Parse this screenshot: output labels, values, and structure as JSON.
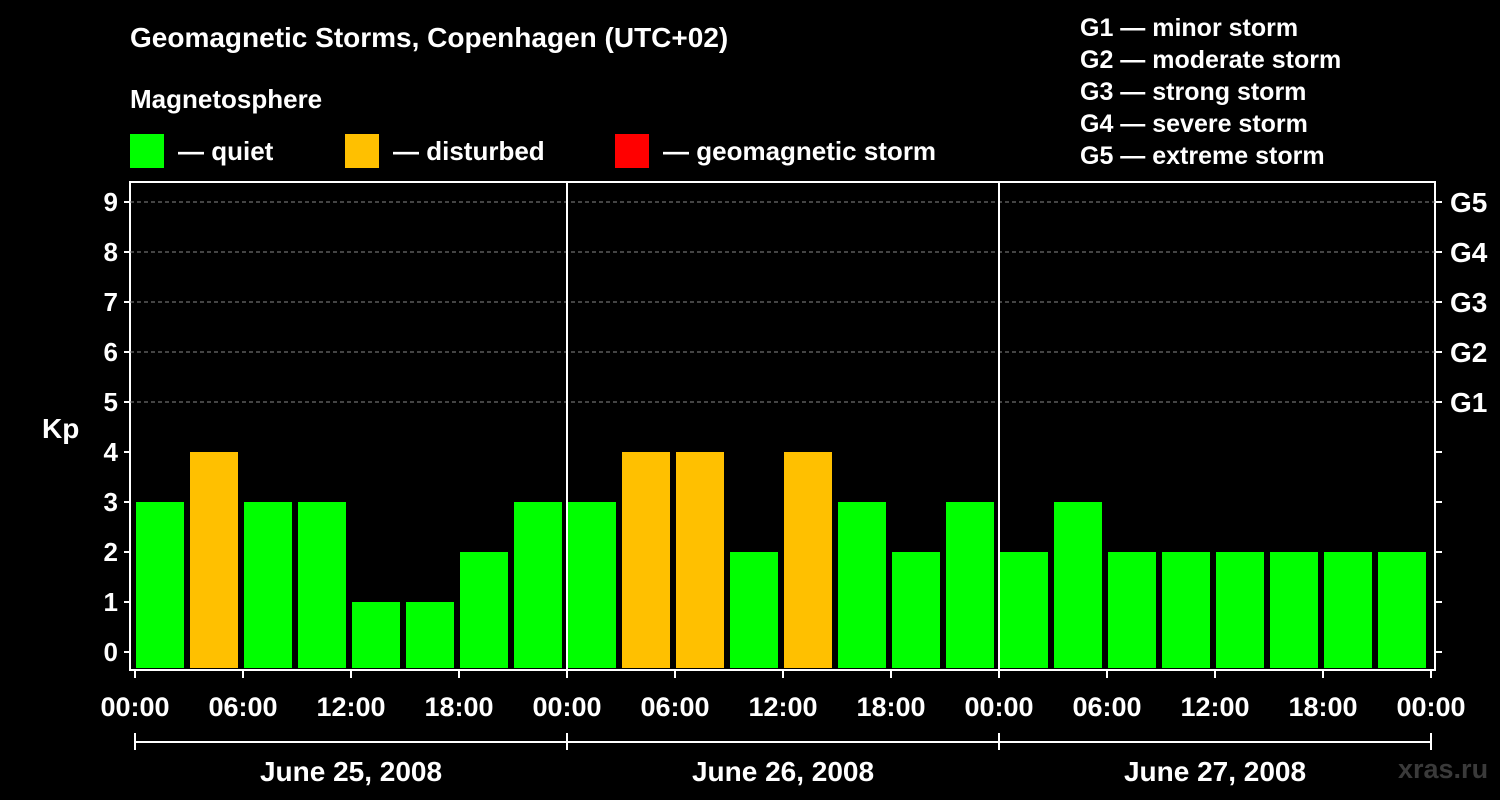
{
  "chart_data": {
    "type": "bar",
    "title": "Geomagnetic Storms, Copenhagen (UTC+02)",
    "ylabel": "Kp",
    "ylim": [
      0,
      9
    ],
    "yticks": [
      "0",
      "1",
      "2",
      "3",
      "4",
      "5",
      "6",
      "7",
      "8",
      "9"
    ],
    "gscale": [
      {
        "kp": 5,
        "label": "G1"
      },
      {
        "kp": 6,
        "label": "G2"
      },
      {
        "kp": 7,
        "label": "G3"
      },
      {
        "kp": 8,
        "label": "G4"
      },
      {
        "kp": 9,
        "label": "G5"
      }
    ],
    "xticks": [
      "00:00",
      "06:00",
      "12:00",
      "18:00",
      "00:00",
      "06:00",
      "12:00",
      "18:00",
      "00:00",
      "06:00",
      "12:00",
      "18:00",
      "00:00"
    ],
    "days": [
      "June 25, 2008",
      "June 26, 2008",
      "June 27, 2008"
    ],
    "interval_hours": 3,
    "values": [
      3,
      4,
      3,
      3,
      1,
      1,
      2,
      3,
      3,
      4,
      4,
      2,
      4,
      3,
      2,
      3,
      2,
      3,
      2,
      2,
      2,
      2,
      2,
      2
    ],
    "thresholds": {
      "disturbed": 4,
      "storm": 5
    },
    "colors": {
      "quiet": "#00ff00",
      "disturbed": "#ffc000",
      "storm": "#ff0000"
    }
  },
  "legend": {
    "heading": "Magnetosphere",
    "items": [
      {
        "key": "quiet",
        "label": "— quiet",
        "color": "#00ff00"
      },
      {
        "key": "disturbed",
        "label": "— disturbed",
        "color": "#ffc000"
      },
      {
        "key": "storm",
        "label": "— geomagnetic storm",
        "color": "#ff0000"
      }
    ]
  },
  "g_legend": [
    "G1 — minor storm",
    "G2 — moderate storm",
    "G3 — strong storm",
    "G4 — severe storm",
    "G5 — extreme storm"
  ],
  "watermark": "xras.ru"
}
